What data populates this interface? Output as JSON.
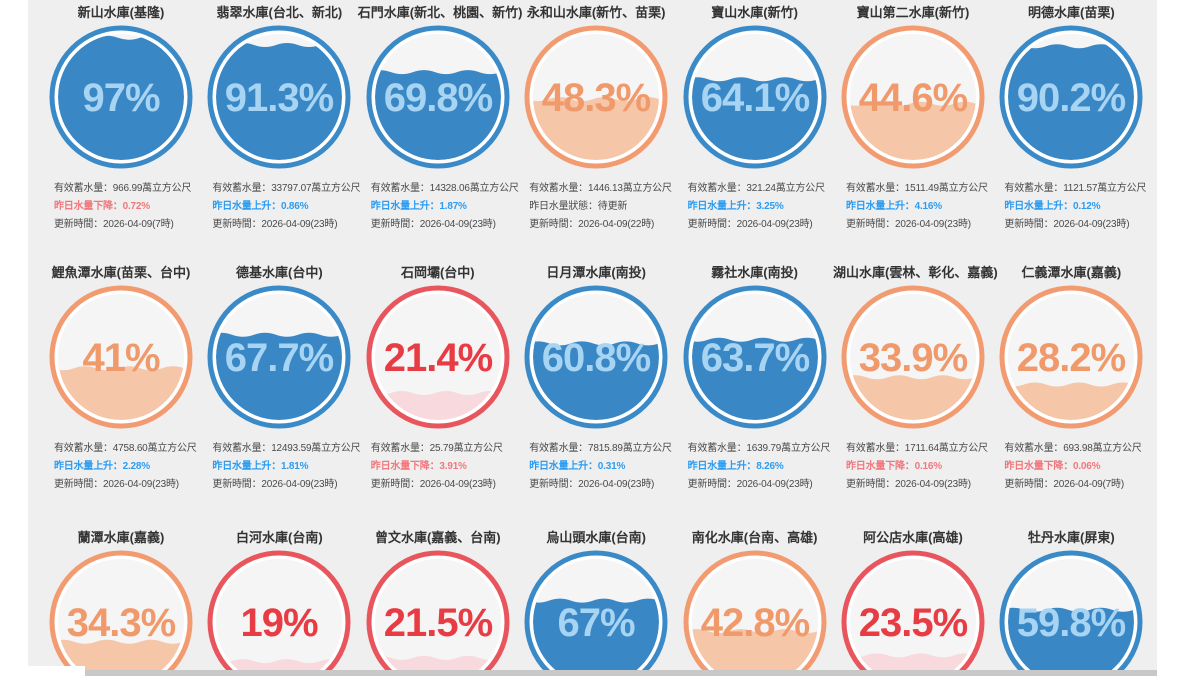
{
  "page": {
    "background": "#ffffff",
    "panel_background": "#efefef",
    "scrollbar_color": "#c8c8c8",
    "title_color": "#333333",
    "info_text_color": "#4a4a4a",
    "rise_color": "#2d9cf0",
    "fall_color": "#f0787d"
  },
  "palette": {
    "blue": {
      "border": "#3a8ac8",
      "fill": "#3a87c6",
      "text": "#a6d4f2",
      "inner": "#f5f5f5"
    },
    "orange": {
      "border": "#f29b70",
      "fill": "#f5c6a8",
      "text": "#f09a6c",
      "inner": "#f5f5f5"
    },
    "red": {
      "border": "#e8555c",
      "fill": "#f8d9dd",
      "text": "#e73c44",
      "inner": "#f5f5f5"
    }
  },
  "reservoirs": [
    {
      "row": 0,
      "col": 0,
      "name": "新山水庫(基隆)",
      "percent": 97,
      "percent_label": "97%",
      "theme": "blue",
      "info": {
        "capacity": "有效蓄水量：966.99萬立方公尺",
        "change": "昨日水量下降：0.72%",
        "change_type": "fall",
        "updated": "更新時間：2026-04-09(7時)"
      }
    },
    {
      "row": 0,
      "col": 1,
      "name": "翡翠水庫(台北、新北)",
      "percent": 91.3,
      "percent_label": "91.3%",
      "theme": "blue",
      "info": {
        "capacity": "有效蓄水量：33797.07萬立方公尺",
        "change": "昨日水量上升：0.86%",
        "change_type": "rise",
        "updated": "更新時間：2026-04-09(23時)"
      }
    },
    {
      "row": 0,
      "col": 2,
      "name": "石門水庫(新北、桃園、新竹)",
      "percent": 69.8,
      "percent_label": "69.8%",
      "theme": "blue",
      "info": {
        "capacity": "有效蓄水量：14328.06萬立方公尺",
        "change": "昨日水量上升：1.87%",
        "change_type": "rise",
        "updated": "更新時間：2026-04-09(23時)"
      }
    },
    {
      "row": 0,
      "col": 3,
      "name": "永和山水庫(新竹、苗栗)",
      "percent": 48.3,
      "percent_label": "48.3%",
      "theme": "orange",
      "info": {
        "capacity": "有效蓄水量：1446.13萬立方公尺",
        "change": "昨日水量狀態：待更新",
        "change_type": "neutral",
        "updated": "更新時間：2026-04-09(22時)"
      }
    },
    {
      "row": 0,
      "col": 4,
      "name": "寶山水庫(新竹)",
      "percent": 64.1,
      "percent_label": "64.1%",
      "theme": "blue",
      "info": {
        "capacity": "有效蓄水量：321.24萬立方公尺",
        "change": "昨日水量上升：3.25%",
        "change_type": "rise",
        "updated": "更新時間：2026-04-09(23時)"
      }
    },
    {
      "row": 0,
      "col": 5,
      "name": "寶山第二水庫(新竹)",
      "percent": 44.6,
      "percent_label": "44.6%",
      "theme": "orange",
      "info": {
        "capacity": "有效蓄水量：1511.49萬立方公尺",
        "change": "昨日水量上升：4.16%",
        "change_type": "rise",
        "updated": "更新時間：2026-04-09(23時)"
      }
    },
    {
      "row": 0,
      "col": 6,
      "name": "明德水庫(苗栗)",
      "percent": 90.2,
      "percent_label": "90.2%",
      "theme": "blue",
      "info": {
        "capacity": "有效蓄水量：1121.57萬立方公尺",
        "change": "昨日水量上升：0.12%",
        "change_type": "rise",
        "updated": "更新時間：2026-04-09(23時)"
      }
    },
    {
      "row": 1,
      "col": 0,
      "name": "鯉魚潭水庫(苗栗、台中)",
      "percent": 41,
      "percent_label": "41%",
      "theme": "orange",
      "info": {
        "capacity": "有效蓄水量：4758.60萬立方公尺",
        "change": "昨日水量上升：2.28%",
        "change_type": "rise",
        "updated": "更新時間：2026-04-09(23時)"
      }
    },
    {
      "row": 1,
      "col": 1,
      "name": "德基水庫(台中)",
      "percent": 67.7,
      "percent_label": "67.7%",
      "theme": "blue",
      "info": {
        "capacity": "有效蓄水量：12493.59萬立方公尺",
        "change": "昨日水量上升：1.81%",
        "change_type": "rise",
        "updated": "更新時間：2026-04-09(23時)"
      }
    },
    {
      "row": 1,
      "col": 2,
      "name": "石岡壩(台中)",
      "percent": 21.4,
      "percent_label": "21.4%",
      "theme": "red",
      "info": {
        "capacity": "有效蓄水量：25.79萬立方公尺",
        "change": "昨日水量下降：3.91%",
        "change_type": "fall",
        "updated": "更新時間：2026-04-09(23時)"
      }
    },
    {
      "row": 1,
      "col": 3,
      "name": "日月潭水庫(南投)",
      "percent": 60.8,
      "percent_label": "60.8%",
      "theme": "blue",
      "info": {
        "capacity": "有效蓄水量：7815.89萬立方公尺",
        "change": "昨日水量上升：0.31%",
        "change_type": "rise",
        "updated": "更新時間：2026-04-09(23時)"
      }
    },
    {
      "row": 1,
      "col": 4,
      "name": "霧社水庫(南投)",
      "percent": 63.7,
      "percent_label": "63.7%",
      "theme": "blue",
      "info": {
        "capacity": "有效蓄水量：1639.79萬立方公尺",
        "change": "昨日水量上升：8.26%",
        "change_type": "rise",
        "updated": "更新時間：2026-04-09(23時)"
      }
    },
    {
      "row": 1,
      "col": 5,
      "name": "湖山水庫(雲林、彰化、嘉義)",
      "percent": 33.9,
      "percent_label": "33.9%",
      "theme": "orange",
      "info": {
        "capacity": "有效蓄水量：1711.64萬立方公尺",
        "change": "昨日水量下降：0.16%",
        "change_type": "fall",
        "updated": "更新時間：2026-04-09(23時)"
      }
    },
    {
      "row": 1,
      "col": 6,
      "name": "仁義潭水庫(嘉義)",
      "percent": 28.2,
      "percent_label": "28.2%",
      "theme": "orange",
      "info": {
        "capacity": "有效蓄水量：693.98萬立方公尺",
        "change": "昨日水量下降：0.06%",
        "change_type": "fall",
        "updated": "更新時間：2026-04-09(7時)"
      }
    },
    {
      "row": 2,
      "col": 0,
      "name": "蘭潭水庫(嘉義)",
      "percent": 34.3,
      "percent_label": "34.3%",
      "theme": "orange",
      "info": null
    },
    {
      "row": 2,
      "col": 1,
      "name": "白河水庫(台南)",
      "percent": 19,
      "percent_label": "19%",
      "theme": "red",
      "info": null
    },
    {
      "row": 2,
      "col": 2,
      "name": "曾文水庫(嘉義、台南)",
      "percent": 21.5,
      "percent_label": "21.5%",
      "theme": "red",
      "info": null
    },
    {
      "row": 2,
      "col": 3,
      "name": "烏山頭水庫(台南)",
      "percent": 67,
      "percent_label": "67%",
      "theme": "blue",
      "info": null
    },
    {
      "row": 2,
      "col": 4,
      "name": "南化水庫(台南、高雄)",
      "percent": 42.8,
      "percent_label": "42.8%",
      "theme": "orange",
      "info": null
    },
    {
      "row": 2,
      "col": 5,
      "name": "阿公店水庫(高雄)",
      "percent": 23.5,
      "percent_label": "23.5%",
      "theme": "red",
      "info": null
    },
    {
      "row": 2,
      "col": 6,
      "name": "牡丹水庫(屏東)",
      "percent": 59.8,
      "percent_label": "59.8%",
      "theme": "blue",
      "info": null
    }
  ]
}
